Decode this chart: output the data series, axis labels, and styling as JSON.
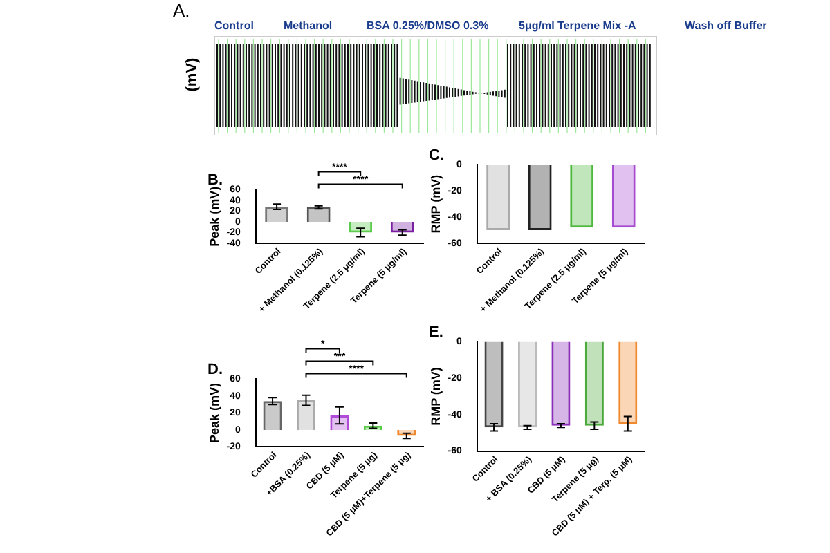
{
  "chart_data": [
    {
      "type": "other",
      "title": "A.",
      "ylabel": "(mV)",
      "annotations": [
        "Control",
        "Methanol",
        "BSA 0.25%/DMSO 0.3%",
        "5μg/ml Terpene Mix -A",
        "Wash off Buffer"
      ]
    },
    {
      "type": "bar",
      "title": "B.",
      "ylabel": "Peak (mV)",
      "categories": [
        "Control",
        "+ Methanol (0.125%)",
        "Terpene (2.5 μg/ml)",
        "Terpene (5 μg/ml)"
      ],
      "values": [
        28,
        27,
        -20,
        -20
      ],
      "errors": [
        5,
        3,
        8,
        5
      ],
      "colors": [
        "#777777",
        "#555555",
        "#5ccc4c",
        "#7a1fa2"
      ],
      "ylim": [
        -40,
        60
      ],
      "yticks": [
        -40,
        -20,
        0,
        20,
        40,
        60
      ],
      "annotations": [
        "****",
        "****"
      ]
    },
    {
      "type": "bar",
      "title": "C.",
      "ylabel": "RMP (mV)",
      "categories": [
        "Control",
        "+ Methanol (0.125%)",
        "Terpene (2.5 μg/ml)",
        "Terpene (5 μg/ml)"
      ],
      "values": [
        -50,
        -50,
        -48,
        -48
      ],
      "colors": [
        "#aaaaaa",
        "#222222",
        "#4cb83c",
        "#a64cd0"
      ],
      "ylim": [
        -60,
        0
      ],
      "yticks": [
        -60,
        -40,
        -20,
        0
      ]
    },
    {
      "type": "bar",
      "title": "D.",
      "ylabel": "Peak (mV)",
      "categories": [
        "Control",
        "+BSA (0.25%)",
        "CBD (5 μM)",
        "Terpene (5 μg)",
        "CBD (5 μM)+Terpene (5 μg)"
      ],
      "values": [
        34,
        35,
        17,
        5,
        -7
      ],
      "errors": [
        4,
        6,
        10,
        3,
        3
      ],
      "colors": [
        "#666666",
        "#aaaaaa",
        "#b04cd8",
        "#5ccc4c",
        "#f08a30"
      ],
      "ylim": [
        -20,
        60
      ],
      "yticks": [
        -20,
        0,
        20,
        40,
        60
      ],
      "annotations": [
        "*",
        "***",
        "****"
      ]
    },
    {
      "type": "bar",
      "title": "E.",
      "ylabel": "RMP (mV)",
      "categories": [
        "Control",
        "+ BSA (0.25%)",
        "CBD (5 μM)",
        "Terpene (5 μg)",
        "CBD (5 μM) + Terp. (5 μM)"
      ],
      "values": [
        -47,
        -47,
        -46,
        -46,
        -45
      ],
      "errors": [
        2,
        1,
        1,
        2,
        4
      ],
      "colors": [
        "#444444",
        "#bbbbbb",
        "#8a2fb8",
        "#4caa3c",
        "#f08a30"
      ],
      "ylim": [
        -60,
        0
      ],
      "yticks": [
        -60,
        -40,
        -20,
        0
      ]
    }
  ]
}
